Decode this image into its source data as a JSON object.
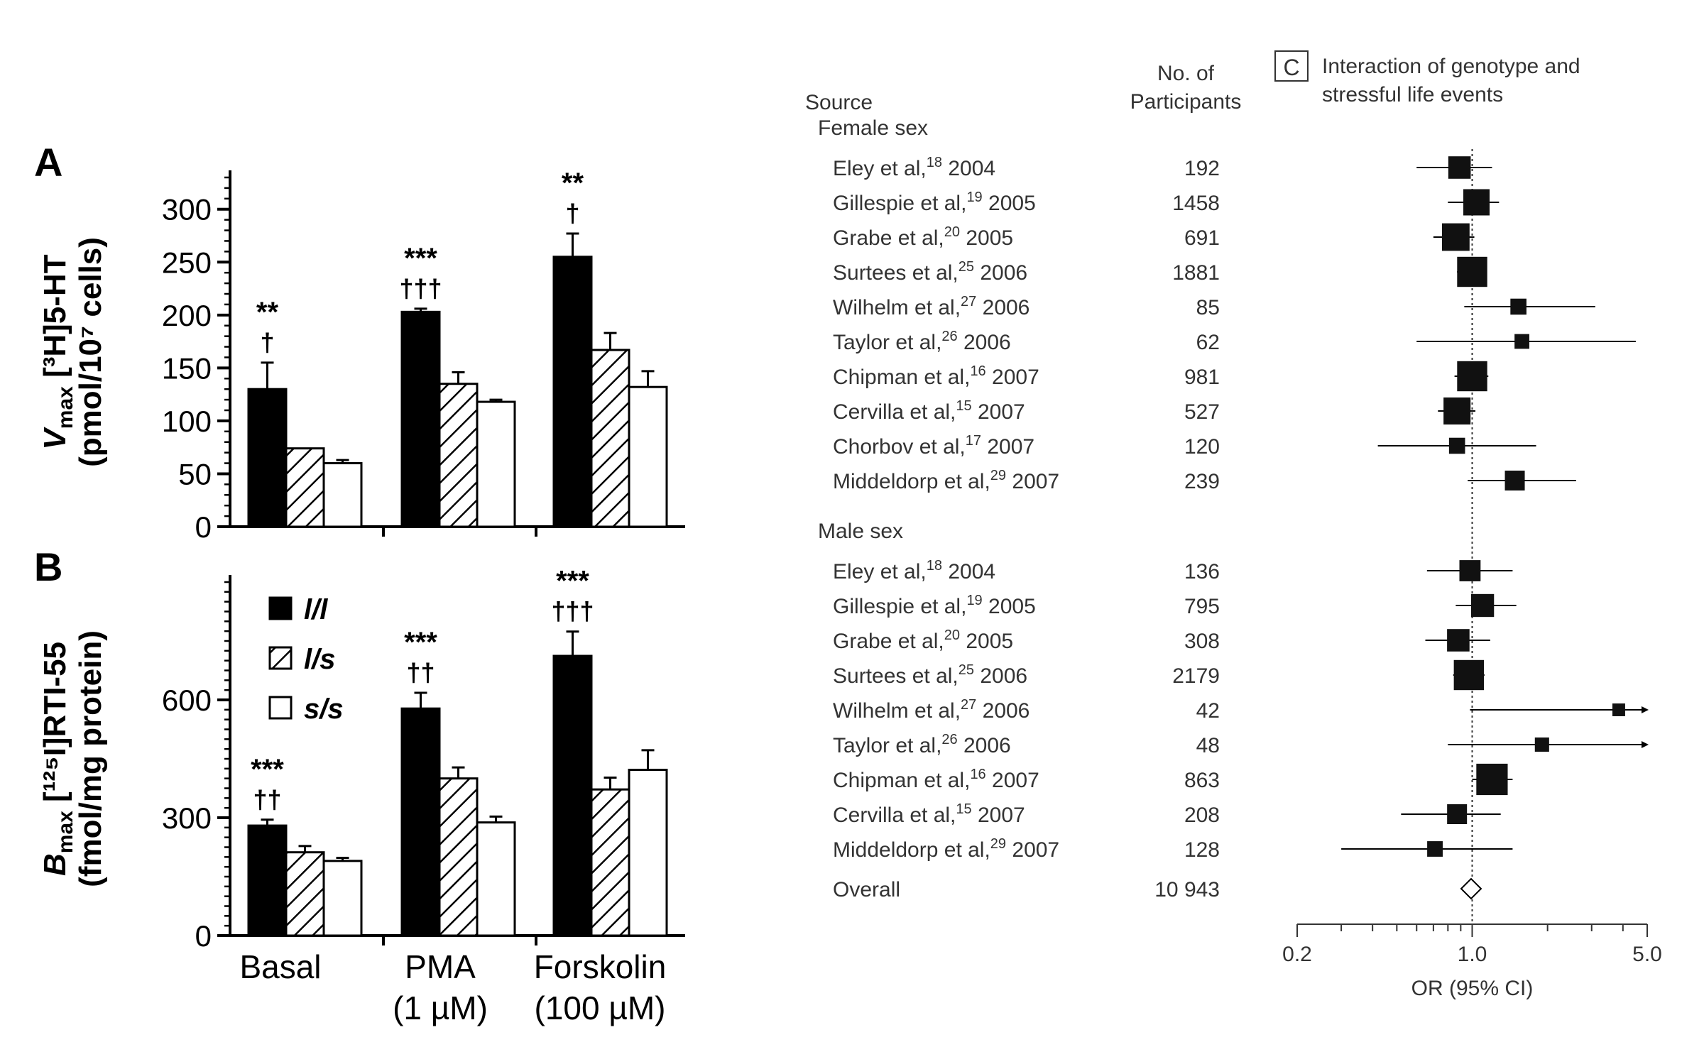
{
  "chart_data": [
    {
      "type": "bar",
      "panel_label": "A",
      "ylabel_main": "V",
      "ylabel_sub": "max",
      "ylabel_rest": " [³H]5-HT",
      "ylabel_units": "(pmol/10⁷ cells)",
      "categories": [
        "Basal",
        "PMA (1 µM)",
        "Forskolin (100 µM)"
      ],
      "ylim": [
        0,
        330
      ],
      "yticks": [
        0,
        50,
        100,
        150,
        200,
        250,
        300
      ],
      "series": [
        {
          "name": "l/l",
          "pattern": "solid",
          "values": [
            130,
            203,
            255
          ],
          "errors": [
            25,
            3,
            22
          ]
        },
        {
          "name": "l/s",
          "pattern": "hatched",
          "values": [
            74,
            135,
            167
          ],
          "errors": [
            0,
            11,
            16
          ]
        },
        {
          "name": "s/s",
          "pattern": "open",
          "values": [
            60,
            118,
            132
          ],
          "errors": [
            3,
            2,
            15
          ]
        }
      ],
      "annotations": [
        {
          "category": 0,
          "lines": [
            "**",
            "†"
          ]
        },
        {
          "category": 1,
          "lines": [
            "***",
            "†††"
          ]
        },
        {
          "category": 2,
          "lines": [
            "**",
            "†"
          ]
        }
      ]
    },
    {
      "type": "bar",
      "panel_label": "B",
      "ylabel_main": "B",
      "ylabel_sub": "max",
      "ylabel_rest": " [¹²⁵I]RTI-55",
      "ylabel_units": "(fmol/mg protein)",
      "categories": [
        "Basal",
        "PMA (1 µM)",
        "Forskolin (100 µM)"
      ],
      "ylim": [
        0,
        900
      ],
      "yticks": [
        0,
        300,
        600
      ],
      "legend": {
        "position": "top-left",
        "entries": [
          "l/l",
          "l/s",
          "s/s"
        ]
      },
      "series": [
        {
          "name": "l/l",
          "pattern": "solid",
          "values": [
            280,
            578,
            712
          ],
          "errors": [
            15,
            40,
            62
          ]
        },
        {
          "name": "l/s",
          "pattern": "hatched",
          "values": [
            212,
            400,
            372
          ],
          "errors": [
            16,
            28,
            30
          ]
        },
        {
          "name": "s/s",
          "pattern": "open",
          "values": [
            190,
            288,
            422
          ],
          "errors": [
            8,
            15,
            50
          ]
        }
      ],
      "annotations": [
        {
          "category": 0,
          "lines": [
            "***",
            "††"
          ]
        },
        {
          "category": 1,
          "lines": [
            "***",
            "††"
          ]
        },
        {
          "category": 2,
          "lines": [
            "***",
            "†††"
          ]
        }
      ],
      "xtick_labels": [
        [
          "Basal"
        ],
        [
          "PMA",
          "(1 µM)"
        ],
        [
          "Forskolin",
          "(100 µM)"
        ]
      ]
    },
    {
      "type": "forest",
      "panel_label": "C",
      "title_lines": [
        "Interaction of genotype and",
        "stressful life events"
      ],
      "column_source": "Source",
      "column_n_lines": [
        "No. of",
        "Participants"
      ],
      "xlabel": "OR (95% CI)",
      "xscale": "log",
      "xlim": [
        0.2,
        5.0
      ],
      "xtick_labels": [
        "0.2",
        "1.0",
        "5.0"
      ],
      "groups": [
        {
          "label": "Female sex",
          "studies": [
            {
              "name": "Eley et al,",
              "ref": "18",
              "year": "2004",
              "n": "192",
              "or": 0.89,
              "lo": 0.6,
              "hi": 1.2,
              "weight": 0.6
            },
            {
              "name": "Gillespie et al,",
              "ref": "19",
              "year": "2005",
              "n": "1458",
              "or": 1.04,
              "lo": 0.8,
              "hi": 1.28,
              "weight": 0.75
            },
            {
              "name": "Grabe et al,",
              "ref": "20",
              "year": "2005",
              "n": "691",
              "or": 0.86,
              "lo": 0.7,
              "hi": 1.02,
              "weight": 0.8
            },
            {
              "name": "Surtees et al,",
              "ref": "25",
              "year": "2006",
              "n": "1881",
              "or": 1.0,
              "lo": 0.87,
              "hi": 1.14,
              "weight": 0.9
            },
            {
              "name": "Wilhelm et al,",
              "ref": "27",
              "year": "2006",
              "n": "85",
              "or": 1.53,
              "lo": 0.93,
              "hi": 3.1,
              "weight": 0.35
            },
            {
              "name": "Taylor et al,",
              "ref": "26",
              "year": "2006",
              "n": "62",
              "or": 1.58,
              "lo": 0.6,
              "hi": 4.5,
              "weight": 0.3
            },
            {
              "name": "Chipman et al,",
              "ref": "16",
              "year": "2007",
              "n": "981",
              "or": 1.0,
              "lo": 0.85,
              "hi": 1.16,
              "weight": 0.9
            },
            {
              "name": "Cervilla et al,",
              "ref": "15",
              "year": "2007",
              "n": "527",
              "or": 0.87,
              "lo": 0.73,
              "hi": 1.03,
              "weight": 0.78
            },
            {
              "name": "Chorbov et al,",
              "ref": "17",
              "year": "2007",
              "n": "120",
              "or": 0.87,
              "lo": 0.42,
              "hi": 1.8,
              "weight": 0.35
            },
            {
              "name": "Middeldorp et al,",
              "ref": "29",
              "year": "2007",
              "n": "239",
              "or": 1.48,
              "lo": 0.96,
              "hi": 2.6,
              "weight": 0.5
            }
          ]
        },
        {
          "label": "Male sex",
          "studies": [
            {
              "name": "Eley et al,",
              "ref": "18",
              "year": "2004",
              "n": "136",
              "or": 0.98,
              "lo": 0.66,
              "hi": 1.45,
              "weight": 0.55
            },
            {
              "name": "Gillespie et al,",
              "ref": "19",
              "year": "2005",
              "n": "795",
              "or": 1.1,
              "lo": 0.86,
              "hi": 1.5,
              "weight": 0.62
            },
            {
              "name": "Grabe et al,",
              "ref": "20",
              "year": "2005",
              "n": "308",
              "or": 0.88,
              "lo": 0.65,
              "hi": 1.18,
              "weight": 0.6
            },
            {
              "name": "Surtees et al,",
              "ref": "25",
              "year": "2006",
              "n": "2179",
              "or": 0.97,
              "lo": 0.84,
              "hi": 1.12,
              "weight": 0.9
            },
            {
              "name": "Wilhelm et al,",
              "ref": "27",
              "year": "2006",
              "n": "42",
              "or": 3.85,
              "lo": 0.98,
              "hi": 5.0,
              "weight": 0.22,
              "arrow": true
            },
            {
              "name": "Taylor et al,",
              "ref": "26",
              "year": "2006",
              "n": "48",
              "or": 1.9,
              "lo": 0.8,
              "hi": 5.0,
              "weight": 0.28,
              "arrow": true
            },
            {
              "name": "Chipman et al,",
              "ref": "16",
              "year": "2007",
              "n": "863",
              "or": 1.2,
              "lo": 1.0,
              "hi": 1.45,
              "weight": 0.95
            },
            {
              "name": "Cervilla et al,",
              "ref": "15",
              "year": "2007",
              "n": "208",
              "or": 0.87,
              "lo": 0.52,
              "hi": 1.3,
              "weight": 0.5
            },
            {
              "name": "Middeldorp et al,",
              "ref": "29",
              "year": "2007",
              "n": "128",
              "or": 0.71,
              "lo": 0.3,
              "hi": 1.45,
              "weight": 0.33
            }
          ]
        }
      ],
      "overall": {
        "label": "Overall",
        "n": "10 943",
        "or": 0.99
      }
    }
  ]
}
